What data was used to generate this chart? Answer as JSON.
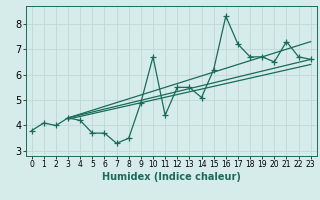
{
  "xlabel": "Humidex (Indice chaleur)",
  "x_data": [
    0,
    1,
    2,
    3,
    4,
    5,
    6,
    7,
    8,
    9,
    10,
    11,
    12,
    13,
    14,
    15,
    16,
    17,
    18,
    19,
    20,
    21,
    22,
    23
  ],
  "y_main": [
    3.8,
    4.1,
    4.0,
    4.3,
    4.2,
    3.7,
    3.7,
    3.3,
    3.5,
    4.9,
    6.7,
    4.4,
    5.5,
    5.5,
    5.1,
    6.2,
    8.3,
    7.2,
    6.7,
    6.7,
    6.5,
    7.3,
    6.7,
    6.6
  ],
  "trend_line1": [
    [
      3,
      4.3
    ],
    [
      23,
      6.6
    ]
  ],
  "trend_line2": [
    [
      3,
      4.3
    ],
    [
      23,
      7.3
    ]
  ],
  "trend_line3": [
    [
      3,
      4.25
    ],
    [
      23,
      6.4
    ]
  ],
  "line_color": "#1a6b5a",
  "bg_color": "#d6ecea",
  "grid_color": "#c0d8d4",
  "ylim": [
    2.8,
    8.7
  ],
  "xlim": [
    -0.5,
    23.5
  ],
  "yticks": [
    3,
    4,
    5,
    6,
    7,
    8
  ],
  "xticks": [
    0,
    1,
    2,
    3,
    4,
    5,
    6,
    7,
    8,
    9,
    10,
    11,
    12,
    13,
    14,
    15,
    16,
    17,
    18,
    19,
    20,
    21,
    22,
    23
  ]
}
